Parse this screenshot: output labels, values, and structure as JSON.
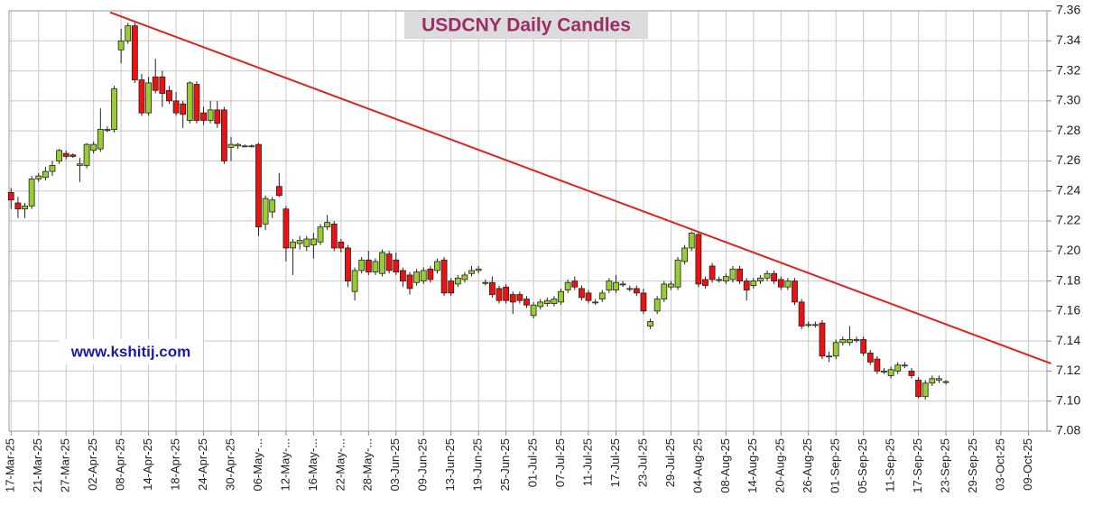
{
  "chart_data": {
    "type": "candlestick",
    "title": "USDCNY Daily Candles",
    "watermark": "www.kshitij.com",
    "up_color": "#99cc33",
    "down_color": "#ee1111",
    "grid": true,
    "ylim": [
      7.08,
      7.36
    ],
    "yticks": [
      7.08,
      {
        "value": 7.1,
        "label": "7.10"
      },
      7.12,
      7.14,
      7.16,
      7.18,
      {
        "value": 7.2,
        "label": "7.20"
      },
      7.22,
      7.24,
      7.26,
      7.28,
      {
        "value": 7.3,
        "label": "7.30"
      },
      7.32,
      7.34,
      7.36
    ],
    "xlim": [
      -0.3,
      150.7
    ],
    "xticks": [
      {
        "value": 0,
        "label": "17-Mar-25"
      },
      {
        "value": 4,
        "label": "21-Mar-25"
      },
      {
        "value": 8,
        "label": "27-Mar-25"
      },
      {
        "value": 12,
        "label": "02-Apr-25"
      },
      {
        "value": 16,
        "label": "08-Apr-25"
      },
      {
        "value": 20,
        "label": "14-Apr-25"
      },
      {
        "value": 24,
        "label": "18-Apr-25"
      },
      {
        "value": 28,
        "label": "24-Apr-25"
      },
      {
        "value": 32,
        "label": "30-Apr-25"
      },
      {
        "value": 36,
        "label": "06-May-..."
      },
      {
        "value": 40,
        "label": "12-May-..."
      },
      {
        "value": 44,
        "label": "16-May-..."
      },
      {
        "value": 48,
        "label": "22-May-..."
      },
      {
        "value": 52,
        "label": "28-May-..."
      },
      {
        "value": 56,
        "label": "03-Jun-25"
      },
      {
        "value": 60,
        "label": "09-Jun-25"
      },
      {
        "value": 64,
        "label": "13-Jun-25"
      },
      {
        "value": 68,
        "label": "19-Jun-25"
      },
      {
        "value": 72,
        "label": "25-Jun-25"
      },
      {
        "value": 76,
        "label": "01-Jul-25"
      },
      {
        "value": 80,
        "label": "07-Jul-25"
      },
      {
        "value": 84,
        "label": "11-Jul-25"
      },
      {
        "value": 88,
        "label": "17-Jul-25"
      },
      {
        "value": 92,
        "label": "23-Jul-25"
      },
      {
        "value": 96,
        "label": "29-Jul-25"
      },
      {
        "value": 100,
        "label": "04-Aug-25"
      },
      {
        "value": 104,
        "label": "08-Aug-25"
      },
      {
        "value": 108,
        "label": "14-Aug-25"
      },
      {
        "value": 112,
        "label": "20-Aug-25"
      },
      {
        "value": 116,
        "label": "26-Aug-25"
      },
      {
        "value": 120,
        "label": "01-Sep-25"
      },
      {
        "value": 124,
        "label": "05-Sep-25"
      },
      {
        "value": 128,
        "label": "11-Sep-25"
      },
      {
        "value": 132,
        "label": "17-Sep-25"
      },
      {
        "value": 136,
        "label": "23-Sep-25"
      },
      {
        "value": 140,
        "label": "29-Sep-25"
      },
      {
        "value": 144,
        "label": "03-Oct-25"
      },
      {
        "value": 148,
        "label": "09-Oct-25"
      }
    ],
    "trendline": {
      "color": "#dd2222",
      "x": [
        14.4,
        151.3
      ],
      "y": [
        7.359,
        7.125
      ]
    },
    "open": [
      7.239,
      7.232,
      7.228,
      7.23,
      7.248,
      7.249,
      7.253,
      7.26,
      7.265,
      7.264,
      7.257,
      7.257,
      7.267,
      7.268,
      7.281,
      7.281,
      7.334,
      7.34,
      7.35,
      7.314,
      7.292,
      7.316,
      7.316,
      7.307,
      7.3,
      7.298,
      7.287,
      7.311,
      7.292,
      7.287,
      7.294,
      7.294,
      7.269,
      7.27,
      7.27,
      7.27,
      7.271,
      7.218,
      7.226,
      7.243,
      7.228,
      7.202,
      7.205,
      7.203,
      7.204,
      7.206,
      7.216,
      7.218,
      7.206,
      7.202,
      7.173,
      7.187,
      7.194,
      7.186,
      7.185,
      7.198,
      7.194,
      7.187,
      7.184,
      7.179,
      7.18,
      7.188,
      7.187,
      7.194,
      7.18,
      7.178,
      7.181,
      7.185,
      7.187,
      7.179,
      7.179,
      7.175,
      7.176,
      7.171,
      7.171,
      7.168,
      7.157,
      7.163,
      7.165,
      7.165,
      7.166,
      7.174,
      7.18,
      7.175,
      7.172,
      7.166,
      7.168,
      7.174,
      7.174,
      7.178,
      7.175,
      7.175,
      7.172,
      7.15,
      7.16,
      7.168,
      7.176,
      7.176,
      7.193,
      7.202,
      7.211,
      7.181,
      7.19,
      7.181,
      7.18,
      7.181,
      7.188,
      7.18,
      7.177,
      7.18,
      7.182,
      7.185,
      7.181,
      7.176,
      7.18,
      7.166,
      7.151,
      7.151,
      7.152,
      7.13,
      7.13,
      7.139,
      7.139,
      7.141,
      7.141,
      7.132,
      7.128,
      7.12,
      7.117,
      7.12,
      7.124,
      7.12,
      7.114,
      7.103,
      7.112,
      7.114,
      7.113
    ],
    "high": [
      7.242,
      7.236,
      7.232,
      7.25,
      7.252,
      7.256,
      7.26,
      7.268,
      7.267,
      7.265,
      7.262,
      7.272,
      7.273,
      7.295,
      7.283,
      7.31,
      7.348,
      7.352,
      7.352,
      7.318,
      7.316,
      7.328,
      7.32,
      7.31,
      7.306,
      7.3,
      7.313,
      7.313,
      7.296,
      7.3,
      7.3,
      7.296,
      7.276,
      7.272,
      7.271,
      7.271,
      7.272,
      7.237,
      7.236,
      7.252,
      7.23,
      7.208,
      7.21,
      7.21,
      7.212,
      7.218,
      7.224,
      7.22,
      7.208,
      7.204,
      7.189,
      7.196,
      7.2,
      7.195,
      7.201,
      7.2,
      7.199,
      7.189,
      7.186,
      7.188,
      7.189,
      7.19,
      7.195,
      7.196,
      7.182,
      7.184,
      7.186,
      7.19,
      7.19,
      7.181,
      7.183,
      7.177,
      7.178,
      7.173,
      7.173,
      7.17,
      7.166,
      7.168,
      7.169,
      7.17,
      7.175,
      7.181,
      7.183,
      7.177,
      7.174,
      7.168,
      7.174,
      7.182,
      7.184,
      7.18,
      7.177,
      7.177,
      7.175,
      7.155,
      7.17,
      7.18,
      7.18,
      7.196,
      7.204,
      7.213,
      7.213,
      7.183,
      7.192,
      7.183,
      7.185,
      7.19,
      7.19,
      7.182,
      7.182,
      7.184,
      7.187,
      7.187,
      7.183,
      7.182,
      7.182,
      7.168,
      7.153,
      7.153,
      7.154,
      7.133,
      7.141,
      7.143,
      7.15,
      7.143,
      7.143,
      7.134,
      7.13,
      7.122,
      7.123,
      7.126,
      7.126,
      7.122,
      7.116,
      7.114,
      7.117,
      7.117,
      7.114
    ],
    "low": [
      7.228,
      7.222,
      7.222,
      7.228,
      7.246,
      7.247,
      7.25,
      7.258,
      7.261,
      7.262,
      7.246,
      7.255,
      7.265,
      7.266,
      7.279,
      7.279,
      7.325,
      7.338,
      7.312,
      7.29,
      7.29,
      7.305,
      7.296,
      7.298,
      7.29,
      7.282,
      7.285,
      7.285,
      7.284,
      7.285,
      7.282,
      7.258,
      7.26,
      7.268,
      7.269,
      7.269,
      7.21,
      7.214,
      7.222,
      7.236,
      7.193,
      7.184,
      7.201,
      7.2,
      7.195,
      7.204,
      7.214,
      7.2,
      7.199,
      7.176,
      7.167,
      7.185,
      7.184,
      7.184,
      7.183,
      7.185,
      7.184,
      7.176,
      7.171,
      7.177,
      7.178,
      7.179,
      7.185,
      7.17,
      7.17,
      7.176,
      7.179,
      7.183,
      7.185,
      7.177,
      7.169,
      7.165,
      7.165,
      7.158,
      7.165,
      7.162,
      7.155,
      7.161,
      7.163,
      7.163,
      7.164,
      7.172,
      7.174,
      7.167,
      7.165,
      7.164,
      7.166,
      7.172,
      7.172,
      7.176,
      7.173,
      7.17,
      7.158,
      7.148,
      7.158,
      7.166,
      7.174,
      7.174,
      7.191,
      7.2,
      7.176,
      7.175,
      7.179,
      7.179,
      7.178,
      7.179,
      7.178,
      7.167,
      7.175,
      7.178,
      7.18,
      7.178,
      7.174,
      7.174,
      7.164,
      7.148,
      7.149,
      7.149,
      7.128,
      7.126,
      7.128,
      7.137,
      7.137,
      7.139,
      7.13,
      7.124,
      7.118,
      7.118,
      7.115,
      7.118,
      7.122,
      7.115,
      7.102,
      7.101,
      7.11,
      7.112,
      7.111
    ],
    "close": [
      7.234,
      7.228,
      7.23,
      7.248,
      7.25,
      7.253,
      7.257,
      7.267,
      7.263,
      7.263,
      7.258,
      7.271,
      7.271,
      7.281,
      7.281,
      7.308,
      7.34,
      7.35,
      7.314,
      7.292,
      7.312,
      7.307,
      7.305,
      7.3,
      7.292,
      7.291,
      7.312,
      7.287,
      7.287,
      7.294,
      7.285,
      7.26,
      7.271,
      7.271,
      7.27,
      7.27,
      7.216,
      7.235,
      7.234,
      7.237,
      7.202,
      7.206,
      7.207,
      7.208,
      7.208,
      7.216,
      7.219,
      7.202,
      7.202,
      7.18,
      7.187,
      7.194,
      7.186,
      7.193,
      7.199,
      7.187,
      7.186,
      7.18,
      7.175,
      7.186,
      7.187,
      7.181,
      7.193,
      7.172,
      7.172,
      7.182,
      7.184,
      7.187,
      7.188,
      7.179,
      7.171,
      7.167,
      7.167,
      7.166,
      7.167,
      7.164,
      7.164,
      7.166,
      7.167,
      7.168,
      7.173,
      7.179,
      7.176,
      7.169,
      7.167,
      7.166,
      7.172,
      7.18,
      7.179,
      7.178,
      7.175,
      7.172,
      7.16,
      7.153,
      7.168,
      7.178,
      7.178,
      7.194,
      7.202,
      7.212,
      7.178,
      7.177,
      7.181,
      7.181,
      7.183,
      7.188,
      7.18,
      7.174,
      7.18,
      7.182,
      7.185,
      7.18,
      7.176,
      7.18,
      7.166,
      7.15,
      7.151,
      7.151,
      7.13,
      7.13,
      7.139,
      7.141,
      7.141,
      7.141,
      7.132,
      7.126,
      7.12,
      7.12,
      7.121,
      7.124,
      7.124,
      7.117,
      7.103,
      7.112,
      7.115,
      7.115,
      7.113
    ]
  }
}
